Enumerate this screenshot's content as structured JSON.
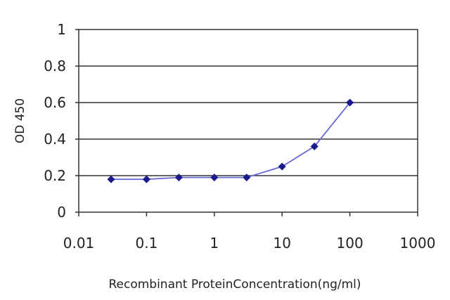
{
  "chart_data": {
    "type": "line",
    "title": "",
    "xlabel": "Recombinant ProteinConcentration(ng/ml)",
    "ylabel": "OD 450",
    "x_scale": "log",
    "xlim": [
      0.01,
      1000
    ],
    "ylim": [
      0,
      1
    ],
    "x_tick_labels": [
      "0.01",
      "0.1",
      "1",
      "10",
      "100",
      "1000"
    ],
    "x_tick_values": [
      0.01,
      0.1,
      1,
      10,
      100,
      1000
    ],
    "y_tick_labels": [
      "0",
      "0.2",
      "0.4",
      "0.6",
      "0.8",
      "1"
    ],
    "y_tick_values": [
      0,
      0.2,
      0.4,
      0.6,
      0.8,
      1
    ],
    "grid": "horizontal",
    "legend": "none",
    "series": [
      {
        "color": "#1a1a8c",
        "marker": "diamond",
        "x": [
          0.03,
          0.1,
          0.3,
          1,
          3,
          10,
          30,
          100
        ],
        "y": [
          0.18,
          0.18,
          0.19,
          0.19,
          0.19,
          0.25,
          0.36,
          0.6
        ]
      }
    ]
  }
}
